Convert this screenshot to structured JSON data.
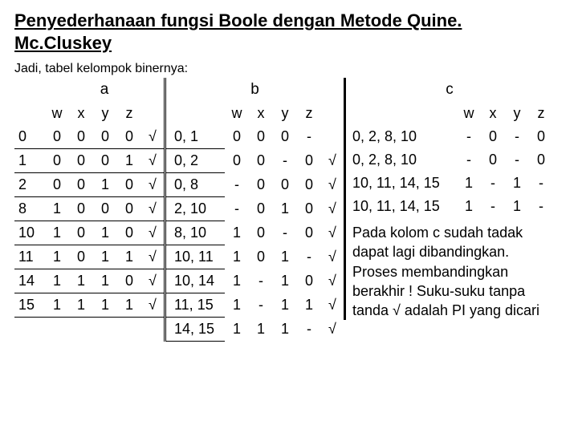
{
  "title": "Penyederhanaan fungsi Boole dengan Metode Quine. Mc.Cluskey",
  "subtitle": "Jadi, tabel kelompok binernya:",
  "labels": {
    "a": "a",
    "b": "b",
    "c": "c",
    "w": "w",
    "x": "x",
    "y": "y",
    "z": "z"
  },
  "check": "√",
  "table_a": [
    {
      "i": "0",
      "w": "0",
      "x": "0",
      "y": "0",
      "z": "0",
      "c": "√"
    },
    {
      "i": "1",
      "w": "0",
      "x": "0",
      "y": "0",
      "z": "1",
      "c": "√"
    },
    {
      "i": "2",
      "w": "0",
      "x": "0",
      "y": "1",
      "z": "0",
      "c": "√"
    },
    {
      "i": "8",
      "w": "1",
      "x": "0",
      "y": "0",
      "z": "0",
      "c": "√"
    },
    {
      "i": "10",
      "w": "1",
      "x": "0",
      "y": "1",
      "z": "0",
      "c": "√"
    },
    {
      "i": "11",
      "w": "1",
      "x": "0",
      "y": "1",
      "z": "1",
      "c": "√"
    },
    {
      "i": "14",
      "w": "1",
      "x": "1",
      "y": "1",
      "z": "0",
      "c": "√"
    },
    {
      "i": "15",
      "w": "1",
      "x": "1",
      "y": "1",
      "z": "1",
      "c": "√"
    }
  ],
  "table_b": [
    {
      "p": "0, 1",
      "w": "0",
      "x": "0",
      "y": "0",
      "z": "-",
      "c": ""
    },
    {
      "p": "0, 2",
      "w": "0",
      "x": "0",
      "y": "-",
      "z": "0",
      "c": "√"
    },
    {
      "p": "0, 8",
      "w": "-",
      "x": "0",
      "y": "0",
      "z": "0",
      "c": "√"
    },
    {
      "p": "2, 10",
      "w": "-",
      "x": "0",
      "y": "1",
      "z": "0",
      "c": "√"
    },
    {
      "p": "8, 10",
      "w": "1",
      "x": "0",
      "y": "-",
      "z": "0",
      "c": "√"
    },
    {
      "p": "10, 11",
      "w": "1",
      "x": "0",
      "y": "1",
      "z": "-",
      "c": "√"
    },
    {
      "p": "10, 14",
      "w": "1",
      "x": "-",
      "y": "1",
      "z": "0",
      "c": "√"
    },
    {
      "p": "11, 15",
      "w": "1",
      "x": "-",
      "y": "1",
      "z": "1",
      "c": "√"
    },
    {
      "p": "14, 15",
      "w": "1",
      "x": "1",
      "y": "1",
      "z": "-",
      "c": "√"
    }
  ],
  "table_c": [
    {
      "g": "0, 2, 8, 10",
      "w": "-",
      "x": "0",
      "y": "-",
      "z": "0"
    },
    {
      "g": "0, 2, 8, 10",
      "w": "-",
      "x": "0",
      "y": "-",
      "z": "0"
    },
    {
      "g": "10, 11, 14, 15",
      "w": "1",
      "x": "-",
      "y": "1",
      "z": "-"
    },
    {
      "g": "10, 11, 14, 15",
      "w": "1",
      "x": "-",
      "y": "1",
      "z": "-"
    }
  ],
  "note": "Pada kolom c sudah tadak dapat lagi dibandingkan. Proses membandingkan berakhir ! Suku-suku tanpa tanda √ adalah PI yang dicari"
}
